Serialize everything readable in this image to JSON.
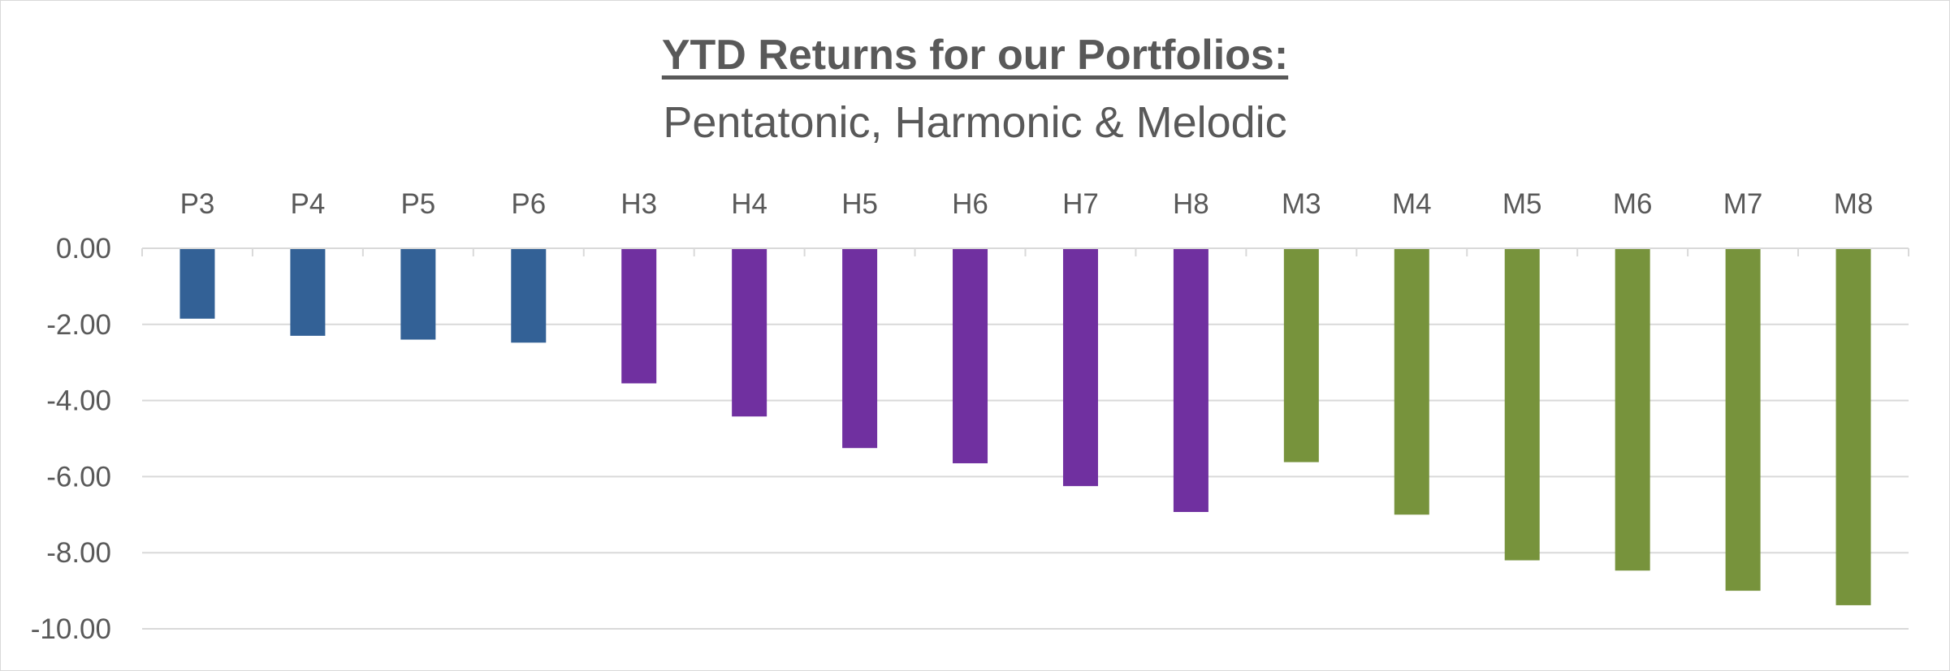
{
  "chart_data": {
    "type": "bar",
    "title": "YTD Returns for our Portfolios:",
    "subtitle": "Pentatonic, Harmonic & Melodic",
    "categories": [
      "P3",
      "P4",
      "P5",
      "P6",
      "H3",
      "H4",
      "H5",
      "H6",
      "H7",
      "H8",
      "M3",
      "M4",
      "M5",
      "M6",
      "M7",
      "M8"
    ],
    "values": [
      -1.85,
      -2.3,
      -2.4,
      -2.48,
      -3.55,
      -4.42,
      -5.25,
      -5.65,
      -6.25,
      -6.93,
      -5.62,
      -7.0,
      -8.2,
      -8.47,
      -9.0,
      -9.38
    ],
    "bar_colors": [
      "#336196",
      "#336196",
      "#336196",
      "#336196",
      "#7030a0",
      "#7030a0",
      "#7030a0",
      "#7030a0",
      "#7030a0",
      "#7030a0",
      "#77933c",
      "#77933c",
      "#77933c",
      "#77933c",
      "#77933c",
      "#77933c"
    ],
    "ylim": [
      -10,
      0
    ],
    "yticks": [
      0,
      -2,
      -4,
      -6,
      -8,
      -10
    ],
    "ytick_labels": [
      "0.00",
      "-2.00",
      "-4.00",
      "-6.00",
      "-8.00",
      "-10.00"
    ],
    "xlabel": "",
    "ylabel": "",
    "grid": true,
    "x_axis_position": "top",
    "legend": "none",
    "gridline_color": "#d9d9d9",
    "text_color": "#595959"
  }
}
